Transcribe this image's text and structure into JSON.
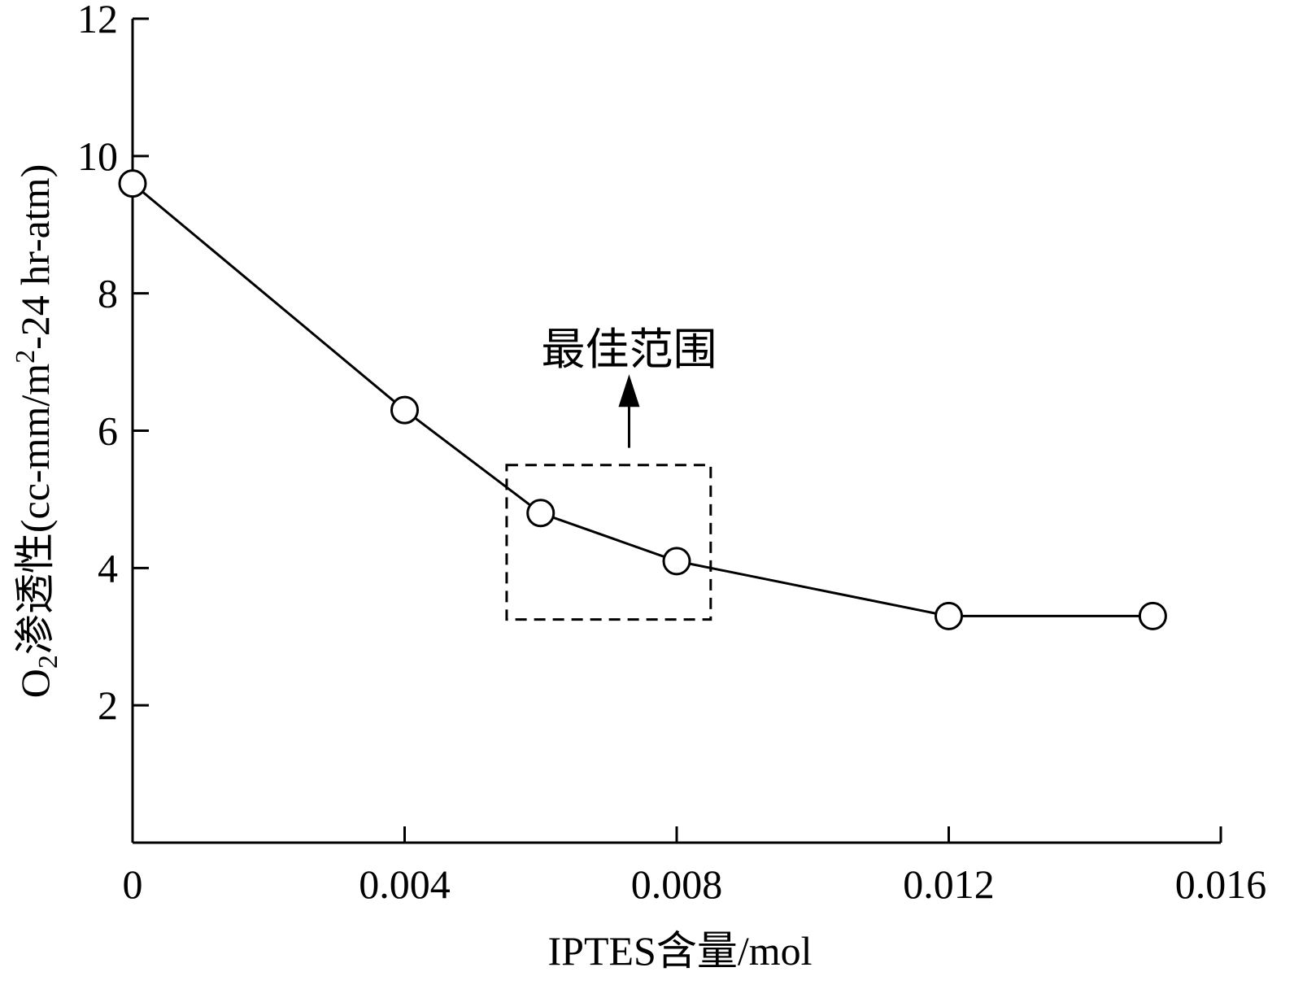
{
  "chart_data": {
    "type": "line",
    "title": "",
    "xlabel": "IPTES含量/mol",
    "ylabel": {
      "prefix": "O",
      "prefix_sub": "2",
      "main": "渗透性(cc-mm/m",
      "main_sup": "2",
      "suffix": "-24 hr-atm)"
    },
    "xlim": [
      0,
      0.016
    ],
    "ylim": [
      0,
      12
    ],
    "x_ticks": [
      {
        "value": 0,
        "label": "0"
      },
      {
        "value": 0.004,
        "label": "0.004"
      },
      {
        "value": 0.008,
        "label": "0.008"
      },
      {
        "value": 0.012,
        "label": "0.012"
      },
      {
        "value": 0.016,
        "label": "0.016"
      }
    ],
    "y_ticks": [
      {
        "value": 2,
        "label": "2"
      },
      {
        "value": 4,
        "label": "4"
      },
      {
        "value": 6,
        "label": "6"
      },
      {
        "value": 8,
        "label": "8"
      },
      {
        "value": 10,
        "label": "10"
      },
      {
        "value": 12,
        "label": "12"
      }
    ],
    "series": [
      {
        "x": [
          0,
          0.004,
          0.006,
          0.008,
          0.012,
          0.015
        ],
        "y": [
          9.6,
          6.3,
          4.8,
          4.1,
          3.3,
          3.3
        ]
      }
    ],
    "grid": false,
    "legend": "none",
    "annotations": {
      "region": {
        "x": [
          0.0055,
          0.0085
        ],
        "y": [
          3.25,
          5.5
        ]
      },
      "arrow": {
        "x": 0.0073,
        "y_from": 5.75,
        "y_to": 6.75
      },
      "text": "最佳范围",
      "text_position": {
        "x": 0.0073,
        "y": 7.2
      }
    },
    "colors": {
      "line": "#000000",
      "marker_fill": "#ffffff",
      "background": "#ffffff"
    }
  }
}
